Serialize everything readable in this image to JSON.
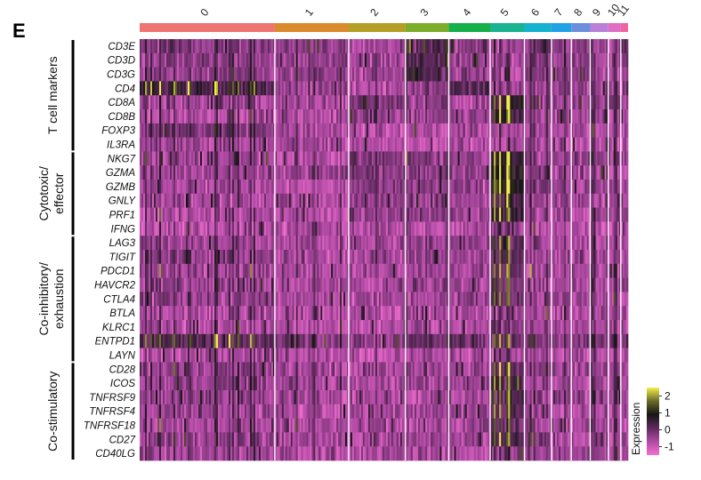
{
  "panel_label": "E",
  "chart_data": {
    "type": "heatmap",
    "title": "",
    "clusters": [
      {
        "label": "0",
        "cells": 150,
        "color": "#ee7570"
      },
      {
        "label": "1",
        "cells": 82,
        "color": "#db8a2e"
      },
      {
        "label": "2",
        "cells": 63,
        "color": "#b3a024"
      },
      {
        "label": "3",
        "cells": 48,
        "color": "#7cae2c"
      },
      {
        "label": "4",
        "cells": 46,
        "color": "#16b04a"
      },
      {
        "label": "5",
        "cells": 38,
        "color": "#19b391"
      },
      {
        "label": "6",
        "cells": 30,
        "color": "#14b2d0"
      },
      {
        "label": "7",
        "cells": 22,
        "color": "#1fa3e6"
      },
      {
        "label": "8",
        "cells": 21,
        "color": "#6c8fdc"
      },
      {
        "label": "9",
        "cells": 20,
        "color": "#bb7fd9"
      },
      {
        "label": "10",
        "cells": 14,
        "color": "#e06ec6"
      },
      {
        "label": "11",
        "cells": 8,
        "color": "#f065a0"
      }
    ],
    "gene_groups": [
      {
        "label": "T cell markers",
        "genes": [
          "CD3E",
          "CD3D",
          "CD3G",
          "CD4",
          "CD8A",
          "CD8B",
          "FOXP3",
          "IL3RA"
        ]
      },
      {
        "label": "Cytotoxic/ effector",
        "lines": [
          "Cytotoxic/",
          "effector"
        ],
        "genes": [
          "NKG7",
          "GZMA",
          "GZMB",
          "GNLY",
          "PRF1",
          "IFNG"
        ]
      },
      {
        "label": "Co-inhibitory/ exhaustion",
        "lines": [
          "Co-inhibitory/",
          "exhaustion"
        ],
        "genes": [
          "LAG3",
          "TIGIT",
          "PDCD1",
          "HAVCR2",
          "CTLA4",
          "BTLA",
          "KLRC1",
          "ENTPD1",
          "LAYN"
        ]
      },
      {
        "label": "Co-stimulatory",
        "genes": [
          "CD28",
          "ICOS",
          "TNFRSF9",
          "TNFRSF4",
          "TNFRSF18",
          "CD27",
          "CD40LG"
        ]
      }
    ],
    "legend": {
      "title": "Expression",
      "ticks": [
        "2",
        "1",
        "0",
        "-1"
      ],
      "range": [
        -1.5,
        2.5
      ],
      "colors": [
        "#f36fcf",
        "#b04aa4",
        "#5e2a5c",
        "#161616",
        "#6b6a2a",
        "#f4ee4b"
      ]
    },
    "cluster_gene_means": [
      [
        -0.4,
        -0.5,
        -0.6,
        0.2,
        -0.4,
        -0.6,
        -0.3,
        -0.4,
        -0.2,
        -0.7,
        -0.6,
        -0.2
      ],
      [
        -0.4,
        -0.5,
        -0.6,
        0.2,
        -0.4,
        -0.6,
        -0.3,
        -0.4,
        -0.2,
        -0.7,
        -0.6,
        -0.2
      ],
      [
        -0.4,
        -0.5,
        -0.6,
        0.2,
        -0.4,
        -0.6,
        -0.3,
        -0.4,
        -0.2,
        -0.7,
        -0.6,
        -0.2
      ],
      [
        0.3,
        -0.5,
        -0.7,
        -0.4,
        0.2,
        -0.6,
        -0.4,
        -0.4,
        -0.5,
        -0.7,
        -0.6,
        -0.5
      ],
      [
        -0.6,
        -0.7,
        -0.2,
        -0.4,
        -0.6,
        0.6,
        -0.5,
        -0.5,
        -0.5,
        -0.6,
        -0.6,
        -0.5
      ],
      [
        -0.7,
        -0.7,
        -0.4,
        -0.5,
        -0.6,
        0.4,
        -0.5,
        -0.5,
        -0.6,
        -0.6,
        -0.6,
        -0.6
      ],
      [
        -0.2,
        -0.7,
        -0.8,
        -0.7,
        -0.6,
        -0.7,
        -0.6,
        -0.6,
        -0.6,
        -0.7,
        -0.7,
        -0.6
      ],
      [
        -0.6,
        -0.7,
        -0.8,
        -0.8,
        -0.8,
        -0.8,
        -0.6,
        -0.6,
        -0.7,
        -0.7,
        -0.7,
        -0.7
      ],
      [
        -0.6,
        -0.8,
        -0.2,
        -0.3,
        -0.5,
        0.6,
        -0.5,
        -0.5,
        -0.4,
        -0.6,
        -0.6,
        -0.5
      ],
      [
        -0.5,
        -0.6,
        -0.2,
        -0.3,
        -0.5,
        0.7,
        -0.4,
        -0.5,
        -0.5,
        -0.6,
        -0.6,
        -0.5
      ],
      [
        -0.7,
        -0.8,
        -0.3,
        -0.4,
        -0.5,
        0.8,
        -0.5,
        -0.5,
        -0.5,
        -0.6,
        -0.7,
        -0.6
      ],
      [
        -0.7,
        -0.8,
        -0.4,
        -0.4,
        -0.6,
        0.3,
        -0.6,
        -0.6,
        -0.6,
        -0.7,
        -0.7,
        -0.6
      ],
      [
        -0.7,
        -0.8,
        -0.4,
        -0.4,
        -0.6,
        0.5,
        -0.6,
        -0.6,
        -0.6,
        -0.7,
        -0.7,
        -0.6
      ],
      [
        -0.8,
        -0.8,
        -0.7,
        -0.7,
        -0.8,
        -0.3,
        -0.8,
        -0.8,
        -0.8,
        -0.8,
        -0.8,
        -0.8
      ],
      [
        -0.5,
        -0.7,
        -0.6,
        -0.4,
        -0.5,
        0.2,
        -0.6,
        -0.6,
        -0.6,
        -0.7,
        -0.7,
        -0.6
      ],
      [
        -0.4,
        -0.7,
        -0.6,
        -0.5,
        -0.5,
        0.1,
        -0.6,
        -0.6,
        -0.6,
        -0.7,
        -0.7,
        -0.6
      ],
      [
        -0.5,
        -0.7,
        -0.6,
        -0.5,
        -0.5,
        0.1,
        -0.6,
        -0.6,
        -0.6,
        -0.7,
        -0.7,
        -0.6
      ],
      [
        -0.5,
        -0.7,
        -0.6,
        -0.5,
        -0.5,
        0.0,
        -0.6,
        -0.6,
        -0.6,
        -0.7,
        -0.7,
        -0.6
      ],
      [
        -0.5,
        -0.7,
        -0.6,
        -0.5,
        -0.5,
        0.0,
        -0.6,
        -0.6,
        -0.6,
        -0.7,
        -0.7,
        -0.6
      ],
      [
        -0.7,
        -0.8,
        -0.8,
        -0.7,
        -0.7,
        -0.5,
        -0.7,
        -0.7,
        -0.7,
        -0.8,
        -0.8,
        -0.7
      ],
      [
        -0.7,
        -0.8,
        -0.8,
        -0.7,
        -0.7,
        -0.3,
        -0.7,
        -0.7,
        -0.7,
        -0.8,
        -0.8,
        -0.7
      ],
      [
        0.2,
        -0.2,
        -0.4,
        0.0,
        -0.1,
        0.0,
        -0.2,
        -0.3,
        -0.2,
        -0.3,
        -0.3,
        -0.1
      ],
      [
        -0.7,
        -0.8,
        -0.8,
        -0.7,
        -0.7,
        -0.5,
        -0.7,
        -0.7,
        -0.7,
        -0.8,
        -0.8,
        -0.7
      ],
      [
        -0.4,
        -0.6,
        -0.6,
        -0.5,
        -0.5,
        0.1,
        -0.5,
        -0.6,
        -0.6,
        -0.6,
        -0.6,
        -0.5
      ],
      [
        -0.4,
        -0.6,
        -0.6,
        -0.5,
        -0.5,
        0.3,
        -0.6,
        -0.6,
        -0.6,
        -0.6,
        -0.6,
        -0.5
      ],
      [
        -0.6,
        -0.7,
        -0.7,
        -0.6,
        -0.6,
        0.3,
        -0.6,
        -0.6,
        -0.6,
        -0.7,
        -0.7,
        -0.6
      ],
      [
        -0.6,
        -0.7,
        -0.7,
        -0.6,
        -0.6,
        0.2,
        -0.6,
        -0.6,
        -0.6,
        -0.7,
        -0.7,
        -0.6
      ],
      [
        -0.6,
        -0.7,
        -0.7,
        -0.6,
        -0.6,
        0.1,
        -0.6,
        -0.6,
        -0.6,
        -0.7,
        -0.7,
        -0.6
      ],
      [
        -0.5,
        -0.6,
        -0.6,
        -0.5,
        -0.5,
        0.2,
        -0.5,
        -0.6,
        -0.6,
        -0.6,
        -0.6,
        -0.5
      ],
      [
        -0.6,
        -0.7,
        -0.7,
        -0.6,
        -0.7,
        -0.4,
        -0.6,
        -0.7,
        -0.7,
        -0.7,
        -0.7,
        -0.6
      ]
    ]
  }
}
